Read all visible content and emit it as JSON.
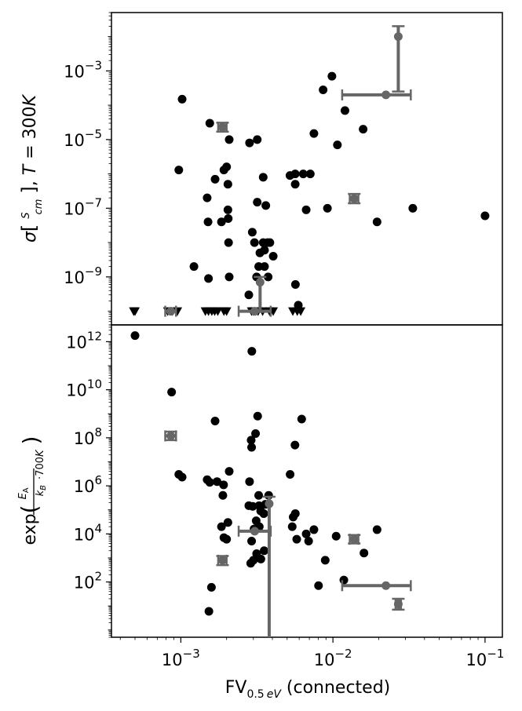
{
  "chart_data": [
    {
      "type": "scatter",
      "panel": "top",
      "ylabel": "σ[S/cm], T = 300K",
      "xscale": "log",
      "yscale": "log",
      "xlim": [
        0.00035,
        0.13
      ],
      "ylim": [
        4e-11,
        0.05
      ],
      "yticks": [
        1e-09,
        1e-07,
        1e-05,
        0.001
      ],
      "ytick_labels": [
        "10^-9",
        "10^-7",
        "10^-5",
        "10^-3"
      ],
      "grid": false,
      "legend": "none",
      "colors": {
        "points": "#000000",
        "highlight": "#666666"
      },
      "points": [
        [
          0.00102,
          0.00015
        ],
        [
          0.00097,
          1.3e-06
        ],
        [
          0.00155,
          3e-05
        ],
        [
          0.00168,
          7e-07
        ],
        [
          0.00192,
          1.3e-06
        ],
        [
          0.002,
          1.6e-06
        ],
        [
          0.00204,
          9e-08
        ],
        [
          0.00185,
          4e-08
        ],
        [
          0.00206,
          1e-08
        ],
        [
          0.00205,
          5e-08
        ],
        [
          0.00149,
          2e-07
        ],
        [
          0.00151,
          4e-08
        ],
        [
          0.00122,
          2e-09
        ],
        [
          0.00152,
          9e-10
        ],
        [
          0.00208,
          1e-09
        ],
        [
          0.00208,
          1e-05
        ],
        [
          0.00204,
          5e-07
        ],
        [
          0.00283,
          8e-06
        ],
        [
          0.00318,
          1e-05
        ],
        [
          0.00318,
          1.5e-07
        ],
        [
          0.00348,
          8e-07
        ],
        [
          0.00295,
          2e-08
        ],
        [
          0.00305,
          1e-08
        ],
        [
          0.00331,
          5e-09
        ],
        [
          0.00348,
          1e-08
        ],
        [
          0.00385,
          1e-08
        ],
        [
          0.00372,
          1e-08
        ],
        [
          0.00355,
          6e-09
        ],
        [
          0.00355,
          2e-09
        ],
        [
          0.00325,
          2e-09
        ],
        [
          0.00315,
          1e-09
        ],
        [
          0.00375,
          1e-09
        ],
        [
          0.00405,
          4e-09
        ],
        [
          0.00522,
          9e-07
        ],
        [
          0.00565,
          1e-06
        ],
        [
          0.00565,
          5e-07
        ],
        [
          0.00638,
          1e-06
        ],
        [
          0.00667,
          9e-08
        ],
        [
          0.0071,
          1e-06
        ],
        [
          0.0075,
          1.5e-05
        ],
        [
          0.00862,
          0.00028
        ],
        [
          0.00985,
          0.0007
        ],
        [
          0.0107,
          7e-06
        ],
        [
          0.012,
          7e-05
        ],
        [
          0.0158,
          2e-05
        ],
        [
          0.0092,
          1e-07
        ],
        [
          0.0195,
          4e-08
        ],
        [
          0.0335,
          1e-07
        ],
        [
          0.1,
          6e-08
        ],
        [
          0.00567,
          6e-10
        ],
        [
          0.00592,
          1.5e-10
        ],
        [
          0.0028,
          3e-10
        ],
        [
          0.00362,
          1.2e-07
        ]
      ],
      "upper_limits": {
        "y": 1e-10,
        "x": [
          0.00049,
          0.0005,
          0.00082,
          0.00088,
          0.00095,
          0.00145,
          0.00152,
          0.0016,
          0.00167,
          0.00175,
          0.00192,
          0.002,
          0.00292,
          0.003,
          0.00308,
          0.00322,
          0.00345,
          0.00383,
          0.00405,
          0.00545,
          0.00583,
          0.00614
        ]
      },
      "errorbar_points": [
        {
          "x": 0.0269,
          "y": 0.01,
          "x_err": [
            0.0269,
            0.0269
          ],
          "y_err": [
            0.00025,
            0.02
          ]
        },
        {
          "x": 0.0223,
          "y": 0.0002,
          "x_err": [
            0.0115,
            0.0325
          ],
          "y_err": [
            0.0002,
            0.0002
          ]
        },
        {
          "x": 0.00188,
          "y": 2.3e-05,
          "x_err": [
            0.00176,
            0.002
          ],
          "y_err": [
            1.7e-05,
            3.1e-05
          ]
        },
        {
          "x": 0.0138,
          "y": 1.9e-07,
          "x_err": [
            0.0129,
            0.0147
          ],
          "y_err": [
            1.4e-07,
            2.6e-07
          ]
        },
        {
          "x": 0.00332,
          "y": 7e-10,
          "x_err": [
            0.00332,
            0.00332
          ],
          "y_err": [
            1e-10,
            1e-09
          ]
        },
        {
          "x": 0.00306,
          "y": 1e-10,
          "x_err": [
            0.0024,
            0.0039
          ],
          "y_err": [
            1e-10,
            1e-10
          ]
        },
        {
          "x": 0.00086,
          "y": 1e-10,
          "x_err": [
            0.00079,
            0.00093
          ],
          "y_err": [
            1e-10,
            1e-10
          ]
        }
      ]
    },
    {
      "type": "scatter",
      "panel": "bottom",
      "ylabel": "exp(E_A / (k_B · 700K))",
      "xlabel": "FV_0.5 eV (connected)",
      "xscale": "log",
      "yscale": "log",
      "xlim": [
        0.00035,
        0.13
      ],
      "ylim": [
        0.5,
        5000000000000.0
      ],
      "yticks": [
        100.0,
        10000.0,
        1000000.0,
        100000000.0,
        10000000000.0,
        1000000000000.0
      ],
      "ytick_labels": [
        "10^2",
        "10^4",
        "10^6",
        "10^8",
        "10^10",
        "10^12"
      ],
      "xticks": [
        0.001,
        0.01,
        0.1
      ],
      "xtick_labels": [
        "10^-3",
        "10^-2",
        "10^-1"
      ],
      "grid": false,
      "legend": "none",
      "colors": {
        "points": "#000000",
        "highlight": "#666666"
      },
      "points": [
        [
          0.0005,
          1800000000000.0
        ],
        [
          0.00087,
          8000000000.0
        ],
        [
          0.00293,
          400000000000.0
        ],
        [
          0.00097,
          3000000.0
        ],
        [
          0.00102,
          2300000.0
        ],
        [
          0.00149,
          1800000.0
        ],
        [
          0.00155,
          1400000.0
        ],
        [
          0.00173,
          1500000.0
        ],
        [
          0.00208,
          4000000.0
        ],
        [
          0.00168,
          500000000.0
        ],
        [
          0.00153,
          6
        ],
        [
          0.00159,
          60
        ],
        [
          0.00191,
          1100000.0
        ],
        [
          0.00189,
          400000.0
        ],
        [
          0.00185,
          20000.0
        ],
        [
          0.00204,
          30000.0
        ],
        [
          0.00192,
          7000.0
        ],
        [
          0.002,
          6000.0
        ],
        [
          0.00283,
          1500000.0
        ],
        [
          0.0032,
          800000000.0
        ],
        [
          0.0031,
          150000000.0
        ],
        [
          0.0029,
          80000000.0
        ],
        [
          0.00292,
          40000000.0
        ],
        [
          0.0036,
          170000.0
        ],
        [
          0.0028,
          150000.0
        ],
        [
          0.00297,
          140000.0
        ],
        [
          0.00327,
          150000.0
        ],
        [
          0.00351,
          70000.0
        ],
        [
          0.00335,
          90000.0
        ],
        [
          0.00313,
          35000.0
        ],
        [
          0.00328,
          20000.0
        ],
        [
          0.00303,
          16000.0
        ],
        [
          0.00292,
          5000.0
        ],
        [
          0.00315,
          1500.0
        ],
        [
          0.00288,
          600
        ],
        [
          0.003,
          800
        ],
        [
          0.00336,
          900
        ],
        [
          0.00378,
          400000.0
        ],
        [
          0.00353,
          2000.0
        ],
        [
          0.00566,
          70000.0
        ],
        [
          0.00548,
          50000.0
        ],
        [
          0.0054,
          20000.0
        ],
        [
          0.00578,
          6000.0
        ],
        [
          0.00523,
          3000000.0
        ],
        [
          0.00563,
          50000000.0
        ],
        [
          0.00623,
          600000000.0
        ],
        [
          0.00667,
          10000.0
        ],
        [
          0.00692,
          5000.0
        ],
        [
          0.0075,
          15000.0
        ],
        [
          0.0089,
          800
        ],
        [
          0.00804,
          70
        ],
        [
          0.0118,
          120
        ],
        [
          0.0105,
          8000.0
        ],
        [
          0.016,
          1600.0
        ],
        [
          0.0195,
          15000.0
        ],
        [
          0.00325,
          400000.0
        ]
      ],
      "errorbar_points": [
        {
          "x": 0.00381,
          "y": 180000.0,
          "x_err": [
            0.00381,
            0.00381
          ],
          "y_err": [
            0.5,
            350000.0
          ]
        },
        {
          "x": 0.00306,
          "y": 13000.0,
          "x_err": [
            0.0024,
            0.0039
          ],
          "y_err": [
            13000.0,
            13000.0
          ]
        },
        {
          "x": 0.0223,
          "y": 70,
          "x_err": [
            0.0115,
            0.0325
          ],
          "y_err": [
            70,
            70
          ]
        },
        {
          "x": 0.0269,
          "y": 12,
          "x_err": [
            0.0258,
            0.028
          ],
          "y_err": [
            7,
            20
          ]
        },
        {
          "x": 0.0138,
          "y": 6000.0,
          "x_err": [
            0.0129,
            0.0147
          ],
          "y_err": [
            4000.0,
            9000.0
          ]
        },
        {
          "x": 0.00188,
          "y": 800,
          "x_err": [
            0.00176,
            0.002
          ],
          "y_err": [
            500,
            1200
          ]
        },
        {
          "x": 0.00086,
          "y": 120000000.0,
          "x_err": [
            0.00079,
            0.00093
          ],
          "y_err": [
            80000000.0,
            180000000.0
          ]
        }
      ]
    }
  ]
}
